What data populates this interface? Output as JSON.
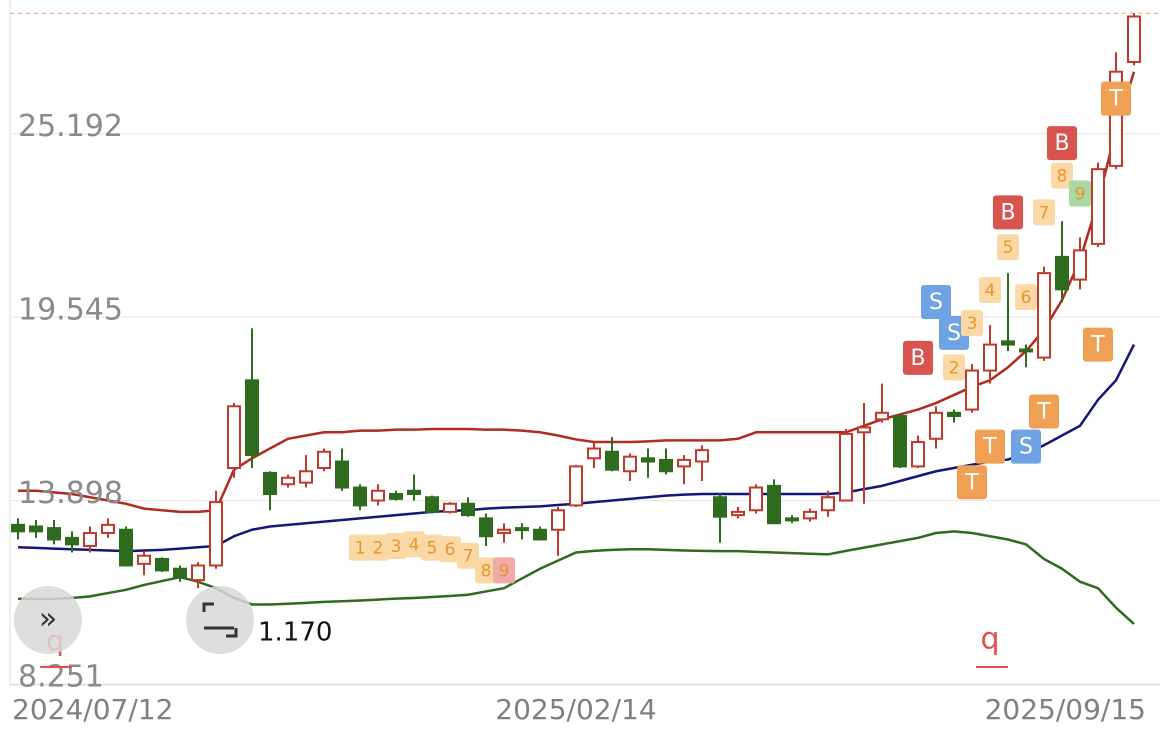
{
  "chart_data": {
    "type": "candlestick",
    "categories": [
      "2024/07/12",
      null,
      null,
      null,
      null,
      null,
      null,
      null,
      null,
      null,
      null,
      null,
      null,
      null,
      null,
      null,
      null,
      null,
      null,
      null,
      null,
      null,
      null,
      null,
      null,
      null,
      null,
      null,
      null,
      null,
      null,
      "2025/02/14",
      null,
      null,
      null,
      null,
      null,
      null,
      null,
      null,
      null,
      null,
      null,
      null,
      null,
      null,
      null,
      null,
      null,
      null,
      null,
      null,
      null,
      null,
      null,
      null,
      null,
      null,
      null,
      null,
      null,
      null,
      "2025/09/15"
    ],
    "open": [
      13.15,
      13.1,
      13.05,
      12.75,
      12.5,
      12.9,
      13.0,
      11.95,
      12.1,
      11.8,
      11.45,
      11.9,
      14.9,
      17.6,
      14.75,
      14.4,
      14.45,
      14.9,
      15.1,
      14.3,
      13.9,
      14.1,
      14.2,
      14.0,
      13.55,
      13.8,
      13.35,
      12.9,
      13.05,
      13.0,
      13.0,
      13.75,
      15.2,
      15.4,
      14.8,
      15.2,
      15.15,
      14.95,
      15.1,
      14.0,
      13.45,
      13.6,
      14.35,
      13.35,
      13.35,
      13.6,
      13.9,
      16.0,
      16.4,
      16.5,
      14.95,
      15.8,
      16.6,
      16.7,
      17.9,
      18.8,
      18.55,
      18.3,
      21.4,
      20.7,
      21.8,
      24.2,
      27.4
    ],
    "high": [
      13.35,
      13.3,
      13.3,
      12.95,
      13.1,
      13.35,
      13.1,
      12.35,
      12.15,
      11.9,
      12.0,
      14.2,
      16.9,
      19.2,
      14.8,
      14.7,
      15.3,
      15.5,
      15.5,
      14.4,
      14.4,
      14.2,
      14.7,
      14.05,
      13.85,
      14.0,
      13.5,
      13.2,
      13.2,
      13.1,
      13.7,
      15.0,
      15.7,
      15.85,
      15.35,
      15.5,
      15.5,
      15.3,
      15.6,
      14.1,
      13.7,
      14.4,
      14.55,
      13.45,
      13.65,
      14.2,
      16.1,
      16.9,
      17.5,
      16.55,
      15.9,
      16.8,
      16.7,
      18.1,
      19.3,
      20.9,
      18.7,
      21.1,
      22.5,
      22.0,
      24.3,
      27.7,
      28.9
    ],
    "low": [
      12.7,
      12.75,
      12.55,
      12.3,
      12.3,
      12.75,
      11.9,
      11.6,
      11.7,
      11.4,
      11.2,
      11.8,
      14.6,
      14.9,
      13.6,
      14.3,
      14.3,
      14.8,
      14.2,
      13.6,
      13.75,
      13.9,
      13.9,
      13.5,
      13.5,
      13.4,
      12.5,
      12.6,
      12.7,
      12.7,
      12.2,
      13.7,
      14.9,
      14.8,
      14.5,
      14.6,
      14.7,
      14.4,
      14.5,
      12.6,
      13.35,
      13.5,
      13.2,
      13.2,
      13.25,
      13.4,
      13.9,
      13.8,
      16.3,
      14.9,
      14.9,
      15.5,
      16.3,
      16.6,
      17.5,
      18.5,
      18.0,
      18.2,
      20.0,
      20.4,
      21.7,
      24.1,
      27.3
    ],
    "close": [
      12.95,
      12.95,
      12.7,
      12.55,
      12.9,
      13.15,
      11.9,
      12.2,
      11.75,
      11.55,
      11.9,
      13.85,
      16.8,
      15.3,
      14.1,
      14.6,
      14.8,
      15.4,
      14.3,
      13.75,
      14.2,
      13.95,
      14.1,
      13.55,
      13.8,
      13.45,
      12.8,
      13.0,
      13.0,
      12.7,
      13.6,
      14.95,
      15.5,
      14.85,
      15.25,
      15.1,
      14.8,
      15.15,
      15.45,
      13.4,
      13.55,
      14.3,
      13.2,
      13.3,
      13.55,
      14.0,
      15.95,
      16.15,
      16.6,
      14.95,
      15.7,
      16.6,
      16.5,
      17.9,
      18.7,
      18.7,
      18.5,
      20.9,
      20.4,
      21.6,
      24.1,
      27.1,
      28.8
    ],
    "up_color": "#c0392b",
    "down_color": "#2e6b1e",
    "lines": [
      {
        "color": "#b22a22",
        "values": [
          14.2,
          14.2,
          14.15,
          14.1,
          14.0,
          13.9,
          13.8,
          13.65,
          13.6,
          13.55,
          13.55,
          13.6,
          14.85,
          15.2,
          15.5,
          15.8,
          15.9,
          16.0,
          16.0,
          16.05,
          16.05,
          16.08,
          16.08,
          16.1,
          16.1,
          16.1,
          16.08,
          16.08,
          16.05,
          16.0,
          15.9,
          15.78,
          15.7,
          15.7,
          15.7,
          15.72,
          15.75,
          15.75,
          15.75,
          15.75,
          15.8,
          16.0,
          16.0,
          16.0,
          16.0,
          16.0,
          16.0,
          16.2,
          16.4,
          16.55,
          16.7,
          16.9,
          17.15,
          17.4,
          17.6,
          18.0,
          18.5,
          19.15,
          20.07,
          21.3,
          23.1,
          25.3,
          27.1
        ]
      },
      {
        "color": "#14167a",
        "values": [
          12.46,
          12.44,
          12.42,
          12.4,
          12.38,
          12.36,
          12.34,
          12.36,
          12.38,
          12.42,
          12.46,
          12.5,
          12.8,
          13.0,
          13.1,
          13.15,
          13.2,
          13.25,
          13.3,
          13.35,
          13.4,
          13.45,
          13.5,
          13.55,
          13.58,
          13.6,
          13.65,
          13.68,
          13.7,
          13.72,
          13.76,
          13.8,
          13.85,
          13.9,
          13.95,
          14.0,
          14.05,
          14.08,
          14.1,
          14.1,
          14.1,
          14.1,
          14.1,
          14.1,
          14.1,
          14.1,
          14.15,
          14.25,
          14.35,
          14.5,
          14.65,
          14.8,
          14.9,
          15.0,
          15.1,
          15.16,
          15.35,
          15.6,
          15.9,
          16.2,
          17.0,
          17.6,
          18.7
        ]
      },
      {
        "color": "#2f6a22",
        "values": [
          10.87,
          10.87,
          10.87,
          10.9,
          10.95,
          11.05,
          11.15,
          11.3,
          11.42,
          11.54,
          11.4,
          11.2,
          10.9,
          10.7,
          10.7,
          10.72,
          10.75,
          10.78,
          10.8,
          10.82,
          10.85,
          10.88,
          10.9,
          10.93,
          10.96,
          11.0,
          11.1,
          11.2,
          11.5,
          11.8,
          12.05,
          12.3,
          12.35,
          12.38,
          12.4,
          12.4,
          12.38,
          12.36,
          12.35,
          12.34,
          12.34,
          12.32,
          12.3,
          12.28,
          12.26,
          12.24,
          12.35,
          12.45,
          12.55,
          12.65,
          12.75,
          12.9,
          12.95,
          12.9,
          12.8,
          12.7,
          12.55,
          12.1,
          11.8,
          11.4,
          11.2,
          10.6,
          10.1
        ]
      }
    ],
    "signals": [
      {
        "index": 19,
        "price": 12.45,
        "label": "1",
        "color": "#fbd9a6"
      },
      {
        "index": 20,
        "price": 12.45,
        "label": "2",
        "color": "#fbd9a6"
      },
      {
        "index": 21,
        "price": 12.5,
        "label": "3",
        "color": "#fbd9a6"
      },
      {
        "index": 22,
        "price": 12.55,
        "label": "4",
        "color": "#fbd9a6"
      },
      {
        "index": 23,
        "price": 12.45,
        "label": "5",
        "color": "#fbd9a6"
      },
      {
        "index": 24,
        "price": 12.4,
        "label": "6",
        "color": "#fbd9a6"
      },
      {
        "index": 25,
        "price": 12.2,
        "label": "7",
        "color": "#fbd9a6"
      },
      {
        "index": 26,
        "price": 11.75,
        "label": "8",
        "color": "#fbd9a6"
      },
      {
        "index": 27,
        "price": 11.75,
        "label": "9",
        "color": "#f2aaa6"
      },
      {
        "index": 50,
        "price": 18.29,
        "label": "B",
        "color": "#d9534f"
      },
      {
        "index": 51,
        "price": 20.01,
        "label": "S",
        "color": "#6fa3e6"
      },
      {
        "index": 52,
        "price": 19.06,
        "label": "S",
        "color": "#6fa3e6"
      },
      {
        "index": 52,
        "price": 18.0,
        "label": "2",
        "color": "#fbd9a6"
      },
      {
        "index": 53,
        "price": 19.36,
        "label": "3",
        "color": "#fbd9a6"
      },
      {
        "index": 54,
        "price": 20.38,
        "label": "4",
        "color": "#fbd9a6"
      },
      {
        "index": 55,
        "price": 21.7,
        "label": "5",
        "color": "#fbd9a6"
      },
      {
        "index": 55,
        "price": 22.77,
        "label": "B",
        "color": "#d9534f"
      },
      {
        "index": 56,
        "price": 20.16,
        "label": "6",
        "color": "#fbd9a6"
      },
      {
        "index": 57,
        "price": 22.77,
        "label": "7",
        "color": "#fbd9a6"
      },
      {
        "index": 58,
        "price": 23.9,
        "label": "8",
        "color": "#fbd9a6"
      },
      {
        "index": 58,
        "price": 24.9,
        "label": "B",
        "color": "#d9534f"
      },
      {
        "index": 59,
        "price": 23.35,
        "label": "9",
        "color": "#a9d8a0"
      },
      {
        "index": 61,
        "price": 26.27,
        "label": "T",
        "color": "#f0a055"
      },
      {
        "index": 60,
        "price": 18.7,
        "label": "T",
        "color": "#f0a055"
      },
      {
        "index": 57,
        "price": 16.64,
        "label": "T",
        "color": "#f0a055"
      },
      {
        "index": 56,
        "price": 15.56,
        "label": "S",
        "color": "#6fa3e6"
      },
      {
        "index": 54,
        "price": 15.56,
        "label": "T",
        "color": "#f0a055"
      },
      {
        "index": 53,
        "price": 14.46,
        "label": "T",
        "color": "#f0a055"
      }
    ],
    "low_label": "1.170",
    "markers": [
      "q",
      "q"
    ],
    "ylim": [
      8.251,
      29.0
    ],
    "yticks": [
      8.251,
      13.898,
      19.545,
      25.192
    ],
    "grid": true
  }
}
